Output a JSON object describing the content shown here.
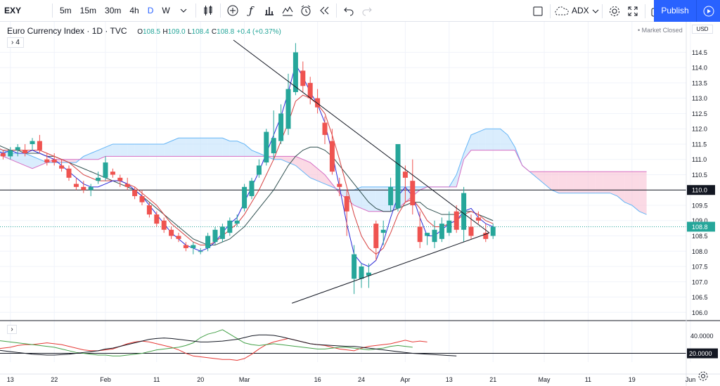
{
  "toolbar": {
    "symbol": "EXY",
    "intervals": [
      "5m",
      "15m",
      "30m",
      "4h",
      "D",
      "W"
    ],
    "active_interval": "D",
    "indicator_label": "ADX",
    "publish_label": "Publish"
  },
  "legend": {
    "title": "Euro Currency Index · 1D · TVC",
    "o_label": "O",
    "o_val": "108.5",
    "h_label": "H",
    "h_val": "109.0",
    "l_label": "L",
    "l_val": "108.4",
    "c_label": "C",
    "c_val": "108.8",
    "change": "+0.4 (+0.37%)",
    "collapse": "4",
    "market_status": "Market Closed",
    "currency": "USD"
  },
  "colors": {
    "up": "#26a69a",
    "down": "#ef5350",
    "fast_ma": "#2a2ad8",
    "slow_ma": "#d64040",
    "ma3": "#2f4f4f",
    "cloud_bull": "#bbdefb",
    "cloud_bear": "#f8bbd0",
    "adx": "#131722",
    "di_plus": "#43a047",
    "di_minus": "#e53935"
  },
  "chart_data": {
    "type": "candlestick",
    "ylim": [
      105.8,
      114.9
    ],
    "yticks": [
      "114.5",
      "114.0",
      "113.5",
      "113.0",
      "112.5",
      "112.0",
      "111.5",
      "111.0",
      "110.5",
      "110.0",
      "109.5",
      "109.0",
      "108.5",
      "108.0",
      "107.5",
      "107.0",
      "106.5",
      "106.0"
    ],
    "last_price_label": "108.8",
    "last_price": 108.8,
    "hline_label": "110.0",
    "hline": 110.0,
    "xticks": [
      {
        "label": "13",
        "bar": 2
      },
      {
        "label": "22",
        "bar": 8
      },
      {
        "label": "Feb",
        "bar": 15
      },
      {
        "label": "11",
        "bar": 22
      },
      {
        "label": "20",
        "bar": 28
      },
      {
        "label": "Mar",
        "bar": 34
      },
      {
        "label": "16",
        "bar": 44
      },
      {
        "label": "24",
        "bar": 50
      },
      {
        "label": "Apr",
        "bar": 56
      },
      {
        "label": "13",
        "bar": 62
      },
      {
        "label": "21",
        "bar": 68
      },
      {
        "label": "May",
        "bar": 75
      },
      {
        "label": "11",
        "bar": 81
      },
      {
        "label": "19",
        "bar": 87
      },
      {
        "label": "Jun",
        "bar": 95
      }
    ],
    "candles": [
      [
        111.2,
        111.3,
        111.0,
        111.1
      ],
      [
        111.2,
        111.3,
        111.0,
        111.1
      ],
      [
        111.1,
        111.4,
        111.0,
        111.3
      ],
      [
        111.3,
        111.5,
        111.1,
        111.4
      ],
      [
        111.3,
        111.5,
        111.1,
        111.2
      ],
      [
        111.5,
        111.7,
        111.3,
        111.6
      ],
      [
        111.6,
        111.8,
        111.2,
        111.3
      ],
      [
        111.0,
        111.2,
        110.8,
        110.9
      ],
      [
        111.0,
        111.2,
        110.8,
        110.9
      ],
      [
        110.8,
        111.0,
        110.6,
        110.7
      ],
      [
        110.7,
        110.8,
        110.3,
        110.4
      ],
      [
        110.2,
        110.4,
        110.0,
        110.1
      ],
      [
        110.1,
        110.3,
        109.9,
        110.0
      ],
      [
        110.0,
        110.2,
        109.8,
        110.1
      ],
      [
        110.3,
        110.6,
        110.2,
        110.4
      ],
      [
        110.4,
        111.1,
        110.3,
        110.9
      ],
      [
        110.6,
        110.7,
        110.4,
        110.5
      ],
      [
        110.4,
        110.5,
        110.1,
        110.3
      ],
      [
        110.2,
        110.4,
        110.0,
        110.1
      ],
      [
        110.0,
        110.1,
        109.7,
        109.8
      ],
      [
        109.8,
        110.0,
        109.5,
        109.6
      ],
      [
        109.5,
        109.6,
        109.1,
        109.2
      ],
      [
        109.2,
        109.3,
        108.8,
        108.9
      ],
      [
        109.0,
        109.1,
        108.6,
        108.7
      ],
      [
        108.7,
        108.8,
        108.4,
        108.5
      ],
      [
        108.5,
        108.6,
        108.3,
        108.4
      ],
      [
        108.2,
        108.3,
        108.0,
        108.1
      ],
      [
        108.1,
        108.3,
        107.9,
        108.2
      ],
      [
        108.0,
        108.1,
        107.9,
        108.0
      ],
      [
        108.1,
        108.6,
        108.0,
        108.5
      ],
      [
        108.3,
        108.8,
        108.2,
        108.7
      ],
      [
        108.4,
        108.9,
        108.3,
        108.8
      ],
      [
        108.6,
        109.1,
        108.5,
        109.0
      ],
      [
        108.9,
        109.2,
        108.8,
        109.0
      ],
      [
        109.4,
        110.2,
        109.3,
        110.1
      ],
      [
        109.8,
        110.4,
        109.7,
        110.3
      ],
      [
        110.5,
        111.0,
        110.4,
        110.8
      ],
      [
        110.9,
        112.0,
        110.8,
        111.9
      ],
      [
        111.2,
        112.6,
        111.0,
        111.7
      ],
      [
        111.6,
        112.8,
        111.5,
        112.5
      ],
      [
        112.0,
        113.8,
        111.8,
        113.3
      ],
      [
        113.2,
        114.8,
        113.1,
        114.5
      ],
      [
        113.9,
        114.2,
        113.2,
        113.4
      ],
      [
        113.5,
        113.7,
        112.8,
        113.0
      ],
      [
        113.0,
        113.3,
        112.5,
        112.7
      ],
      [
        112.2,
        112.4,
        111.5,
        111.8
      ],
      [
        111.6,
        112.0,
        110.5,
        110.6
      ],
      [
        110.2,
        110.4,
        109.8,
        110.1
      ],
      [
        109.8,
        110.0,
        108.5,
        109.3
      ],
      [
        107.1,
        108.2,
        106.6,
        107.9
      ],
      [
        107.1,
        107.6,
        106.8,
        107.5
      ],
      [
        107.2,
        107.6,
        106.8,
        107.3
      ],
      [
        108.9,
        109.0,
        107.7,
        108.1
      ],
      [
        108.6,
        109.0,
        108.2,
        108.7
      ],
      [
        109.5,
        110.4,
        109.3,
        110.1
      ],
      [
        109.4,
        111.5,
        109.3,
        111.5
      ],
      [
        110.6,
        110.8,
        109.6,
        110.4
      ],
      [
        110.3,
        111.0,
        109.2,
        109.5
      ],
      [
        108.8,
        109.3,
        108.1,
        108.3
      ],
      [
        108.5,
        108.6,
        108.2,
        108.6
      ],
      [
        108.3,
        109.0,
        108.1,
        108.7
      ],
      [
        108.4,
        109.1,
        108.3,
        108.9
      ],
      [
        108.6,
        109.3,
        108.5,
        109.0
      ],
      [
        109.3,
        109.5,
        108.6,
        108.7
      ],
      [
        108.7,
        110.1,
        108.3,
        109.9
      ],
      [
        108.8,
        109.2,
        108.4,
        108.5
      ],
      [
        109.1,
        109.3,
        108.9,
        109.0
      ],
      [
        108.6,
        108.9,
        108.3,
        108.4
      ],
      [
        108.5,
        108.9,
        108.4,
        108.8
      ]
    ],
    "fast_ma": [
      111.3,
      111.2,
      111.3,
      111.2,
      111.2,
      111.3,
      111.2,
      111.1,
      111.0,
      110.8,
      110.6,
      110.4,
      110.2,
      110.1,
      110.1,
      110.2,
      110.3,
      110.3,
      110.2,
      110.0,
      109.8,
      109.5,
      109.2,
      108.9,
      108.6,
      108.4,
      108.2,
      108.1,
      108.0,
      108.1,
      108.3,
      108.6,
      108.9,
      109.1,
      109.6,
      110.1,
      110.6,
      111.2,
      111.8,
      112.4,
      113.2,
      114.1,
      113.7,
      113.2,
      112.8,
      112.2,
      111.2,
      110.1,
      108.9,
      107.9,
      107.6,
      107.5,
      107.7,
      108.3,
      109.1,
      109.8,
      110.1,
      109.8,
      109.1,
      108.5,
      108.5,
      108.7,
      108.9,
      109.0,
      109.3,
      109.4,
      109.1,
      108.9,
      108.8
    ],
    "slow_ma": [
      111.4,
      111.3,
      111.3,
      111.3,
      111.3,
      111.3,
      111.3,
      111.2,
      111.1,
      111.0,
      110.9,
      110.7,
      110.5,
      110.4,
      110.3,
      110.3,
      110.3,
      110.3,
      110.2,
      110.1,
      109.9,
      109.7,
      109.5,
      109.2,
      108.9,
      108.7,
      108.5,
      108.3,
      108.2,
      108.2,
      108.3,
      108.5,
      108.7,
      108.9,
      109.2,
      109.6,
      110.0,
      110.5,
      111.0,
      111.6,
      112.2,
      112.9,
      113.1,
      113.0,
      112.8,
      112.5,
      111.8,
      111.0,
      110.1,
      109.2,
      108.5,
      108.1,
      107.9,
      108.1,
      108.6,
      109.2,
      109.6,
      109.7,
      109.4,
      109.0,
      108.8,
      108.8,
      108.9,
      109.0,
      109.2,
      109.3,
      109.2,
      109.0,
      108.9
    ],
    "ma3": [
      111.5,
      111.4,
      111.3,
      111.3,
      111.2,
      111.2,
      111.2,
      111.1,
      111.1,
      111.0,
      110.9,
      110.8,
      110.7,
      110.6,
      110.5,
      110.4,
      110.3,
      110.2,
      110.1,
      110.0,
      109.8,
      109.6,
      109.4,
      109.2,
      109.0,
      108.8,
      108.6,
      108.4,
      108.3,
      108.2,
      108.2,
      108.3,
      108.4,
      108.6,
      108.8,
      109.1,
      109.4,
      109.7,
      110.0,
      110.4,
      110.8,
      111.1,
      111.3,
      111.4,
      111.4,
      111.3,
      111.1,
      110.8,
      110.5,
      110.2,
      109.9,
      109.6,
      109.4,
      109.3,
      109.3,
      109.4,
      109.5,
      109.6,
      109.6,
      109.4,
      109.3,
      109.2,
      109.2,
      109.2,
      109.3,
      109.3,
      109.2,
      109.1,
      109.0
    ],
    "cloud_top": [
      111.4,
      111.3,
      111.2,
      111.2,
      111.2,
      111.1,
      111.0,
      110.9,
      110.9,
      110.9,
      110.9,
      110.9,
      111.1,
      111.2,
      111.3,
      111.4,
      111.5,
      111.5,
      111.5,
      111.5,
      111.5,
      111.5,
      111.5,
      111.5,
      111.6,
      111.7,
      111.7,
      111.7,
      111.7,
      111.7,
      111.7,
      111.7,
      111.6,
      111.6,
      111.5,
      111.3,
      111.2,
      111.1,
      111.0,
      111.0,
      110.9,
      110.8,
      110.6,
      110.4,
      110.3,
      110.2,
      110.1,
      110.0,
      110.0,
      110.0,
      110.1,
      110.1,
      110.1,
      110.1,
      110.1,
      110.1,
      110.1,
      110.1,
      110.1,
      110.1,
      110.1,
      110.1,
      110.1,
      110.5,
      111.2,
      111.8,
      111.9,
      112.0,
      112.0,
      112.0,
      111.8,
      111.4,
      110.8,
      110.6,
      110.4,
      110.2,
      110.0,
      109.9,
      109.9,
      109.9,
      109.9,
      109.9,
      109.9,
      109.9,
      109.9,
      109.8,
      109.6,
      109.5,
      109.3,
      109.2
    ],
    "cloud_bot": [
      111.2,
      111.1,
      111.0,
      110.9,
      110.8,
      110.7,
      110.8,
      110.9,
      111.0,
      111.0,
      111.0,
      111.0,
      111.0,
      111.0,
      111.0,
      111.1,
      111.1,
      111.1,
      111.1,
      111.1,
      111.1,
      111.1,
      111.1,
      111.1,
      111.1,
      111.1,
      111.1,
      111.1,
      111.1,
      111.1,
      111.1,
      111.1,
      111.1,
      111.1,
      111.1,
      111.1,
      111.1,
      111.1,
      111.1,
      111.1,
      111.1,
      111.1,
      111.0,
      110.9,
      110.7,
      110.5,
      110.2,
      109.9,
      109.7,
      109.5,
      109.4,
      109.3,
      109.3,
      109.3,
      109.3,
      109.4,
      109.6,
      109.8,
      110.0,
      110.1,
      110.1,
      110.1,
      110.1,
      110.1,
      111.0,
      111.3,
      111.3,
      111.3,
      111.3,
      111.3,
      111.3,
      111.3,
      110.8,
      110.6,
      110.6,
      110.6,
      110.6,
      110.6,
      110.6,
      110.6,
      110.6,
      110.6,
      110.6,
      110.6,
      110.6,
      110.6,
      110.6,
      110.6,
      110.6,
      110.6
    ],
    "triangle_top": {
      "x1": 32.5,
      "y1": 114.9,
      "x2": 67.5,
      "y2": 108.6
    },
    "triangle_bot": {
      "x1": 40.5,
      "y1": 106.3,
      "x2": 67.5,
      "y2": 108.6
    },
    "adx": {
      "ylim": [
        10,
        55
      ],
      "ticks": [
        {
          "label": "40.0000",
          "v": 40
        },
        {
          "label": "20.0000",
          "v": 20
        }
      ],
      "hline_label": "20.0000",
      "adx": [
        24,
        23,
        22,
        21,
        20,
        19,
        18.5,
        18,
        18,
        18.5,
        19,
        20,
        21,
        22,
        23,
        25,
        26,
        28,
        30,
        32,
        34,
        36,
        37,
        37.5,
        37,
        36,
        35,
        34,
        33,
        33,
        33.5,
        34,
        35,
        36,
        38,
        40,
        41,
        41,
        40.5,
        39,
        37,
        35,
        33,
        31,
        30,
        29.5,
        29,
        28.5,
        28,
        28,
        27,
        26,
        25,
        24,
        23,
        22,
        21,
        20,
        19.5,
        19,
        18.5,
        18,
        17.5,
        17
      ],
      "di_plus": [
        35,
        34,
        33,
        32,
        31,
        30,
        29,
        28,
        27,
        25,
        23,
        21,
        20,
        19,
        18,
        18,
        17,
        17,
        18,
        19,
        20,
        22,
        24,
        25,
        26,
        27,
        29,
        32,
        38,
        42,
        44,
        47,
        42,
        37,
        32,
        30,
        29,
        30,
        31,
        30,
        29,
        28,
        27,
        26,
        25,
        25,
        26,
        27,
        27,
        26,
        25,
        24,
        25,
        26,
        28,
        29,
        28,
        27
      ],
      "di_minus": [
        25,
        26,
        27,
        29,
        30,
        30,
        31,
        32,
        31,
        30,
        28,
        26,
        24,
        23,
        23,
        24,
        25,
        28,
        31,
        33,
        34,
        33,
        31,
        29,
        27,
        24,
        20,
        17,
        16,
        15,
        14,
        13,
        13,
        12,
        14,
        19,
        25,
        30,
        33,
        35,
        37,
        35,
        33,
        31,
        30,
        29,
        27,
        25,
        24,
        23,
        26,
        28,
        29,
        30,
        31,
        33,
        35,
        33,
        34,
        33
      ]
    }
  }
}
